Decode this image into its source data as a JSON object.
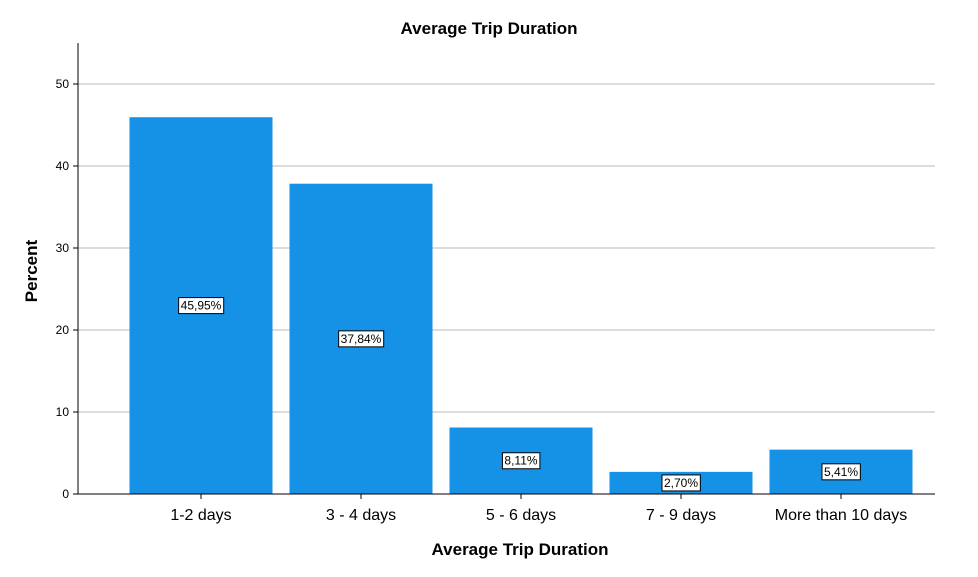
{
  "chart_data": {
    "type": "bar",
    "title": "Average Trip Duration",
    "xlabel": "Average Trip Duration",
    "ylabel": "Percent",
    "categories": [
      "1-2 days",
      "3 - 4 days",
      "5 - 6 days",
      "7 - 9 days",
      "More than 10 days"
    ],
    "values": [
      45.95,
      37.84,
      8.11,
      2.7,
      5.41
    ],
    "data_labels": [
      "45,95%",
      "37,84%",
      "8,11%",
      "2,70%",
      "5,41%"
    ],
    "ylim": [
      0,
      55
    ],
    "yticks": [
      0,
      10,
      20,
      30,
      40,
      50
    ],
    "grid": true,
    "bar_color": "#1591e6"
  }
}
